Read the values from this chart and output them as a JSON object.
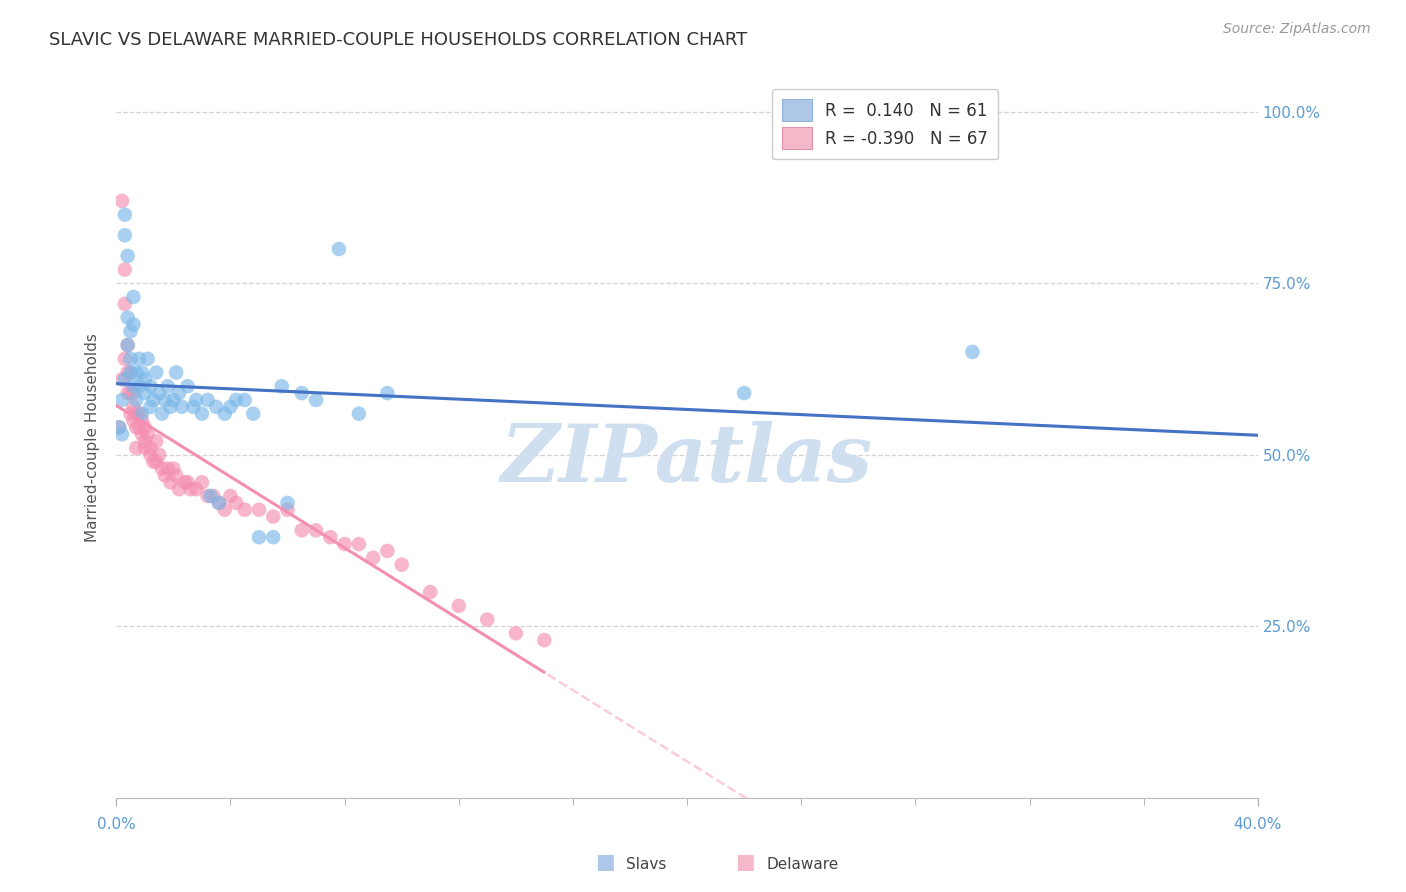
{
  "title": "SLAVIC VS DELAWARE MARRIED-COUPLE HOUSEHOLDS CORRELATION CHART",
  "source": "Source: ZipAtlas.com",
  "ylabel": "Married-couple Households",
  "legend_entries": [
    {
      "label": "Slavs",
      "R": 0.14,
      "N": 61
    },
    {
      "label": "Delaware",
      "R": -0.39,
      "N": 67
    }
  ],
  "watermark": "ZIPatlas",
  "slavs_x": [
    0.001,
    0.002,
    0.002,
    0.003,
    0.003,
    0.003,
    0.004,
    0.004,
    0.004,
    0.005,
    0.005,
    0.005,
    0.006,
    0.006,
    0.006,
    0.007,
    0.007,
    0.008,
    0.008,
    0.009,
    0.009,
    0.01,
    0.01,
    0.011,
    0.012,
    0.012,
    0.013,
    0.014,
    0.015,
    0.016,
    0.017,
    0.018,
    0.019,
    0.02,
    0.021,
    0.022,
    0.023,
    0.025,
    0.027,
    0.028,
    0.03,
    0.032,
    0.033,
    0.035,
    0.036,
    0.038,
    0.04,
    0.042,
    0.045,
    0.048,
    0.05,
    0.055,
    0.058,
    0.06,
    0.065,
    0.07,
    0.078,
    0.085,
    0.095,
    0.22,
    0.3
  ],
  "slavs_y": [
    0.54,
    0.53,
    0.58,
    0.85,
    0.82,
    0.61,
    0.79,
    0.7,
    0.66,
    0.68,
    0.64,
    0.62,
    0.73,
    0.69,
    0.6,
    0.62,
    0.58,
    0.64,
    0.6,
    0.62,
    0.56,
    0.59,
    0.61,
    0.64,
    0.6,
    0.57,
    0.58,
    0.62,
    0.59,
    0.56,
    0.58,
    0.6,
    0.57,
    0.58,
    0.62,
    0.59,
    0.57,
    0.6,
    0.57,
    0.58,
    0.56,
    0.58,
    0.44,
    0.57,
    0.43,
    0.56,
    0.57,
    0.58,
    0.58,
    0.56,
    0.38,
    0.38,
    0.6,
    0.43,
    0.59,
    0.58,
    0.8,
    0.56,
    0.59,
    0.59,
    0.65
  ],
  "delaware_x": [
    0.001,
    0.002,
    0.002,
    0.003,
    0.003,
    0.003,
    0.004,
    0.004,
    0.004,
    0.005,
    0.005,
    0.005,
    0.006,
    0.006,
    0.006,
    0.007,
    0.007,
    0.007,
    0.008,
    0.008,
    0.009,
    0.009,
    0.01,
    0.01,
    0.01,
    0.011,
    0.012,
    0.012,
    0.013,
    0.014,
    0.014,
    0.015,
    0.016,
    0.017,
    0.018,
    0.019,
    0.02,
    0.021,
    0.022,
    0.024,
    0.025,
    0.026,
    0.028,
    0.03,
    0.032,
    0.034,
    0.036,
    0.038,
    0.04,
    0.042,
    0.045,
    0.05,
    0.055,
    0.06,
    0.065,
    0.07,
    0.075,
    0.08,
    0.085,
    0.09,
    0.095,
    0.1,
    0.11,
    0.12,
    0.13,
    0.14,
    0.15
  ],
  "delaware_y": [
    0.54,
    0.87,
    0.61,
    0.77,
    0.72,
    0.64,
    0.66,
    0.62,
    0.59,
    0.62,
    0.59,
    0.56,
    0.59,
    0.57,
    0.55,
    0.56,
    0.54,
    0.51,
    0.56,
    0.54,
    0.53,
    0.55,
    0.54,
    0.52,
    0.51,
    0.53,
    0.5,
    0.51,
    0.49,
    0.52,
    0.49,
    0.5,
    0.48,
    0.47,
    0.48,
    0.46,
    0.48,
    0.47,
    0.45,
    0.46,
    0.46,
    0.45,
    0.45,
    0.46,
    0.44,
    0.44,
    0.43,
    0.42,
    0.44,
    0.43,
    0.42,
    0.42,
    0.41,
    0.42,
    0.39,
    0.39,
    0.38,
    0.37,
    0.37,
    0.35,
    0.36,
    0.34,
    0.3,
    0.28,
    0.26,
    0.24,
    0.23
  ],
  "slavs_dot_color": "#7bb8e8",
  "delaware_dot_color": "#f48fb1",
  "slavs_line_color": "#4472c4",
  "delaware_line_color": "#f48fb1",
  "slavs_legend_color": "#aec6e8",
  "delaware_legend_color": "#f4b8c8",
  "background_color": "#ffffff",
  "grid_color": "#c8c8c8",
  "title_color": "#333333",
  "axis_tick_color": "#5b9bd5",
  "watermark_color": "#d0dff0",
  "xmin": 0.0,
  "xmax": 0.4,
  "ymin": 0.0,
  "ymax": 1.05,
  "ytick_vals": [
    0.25,
    0.5,
    0.75,
    1.0
  ],
  "ytick_labels": [
    "25.0%",
    "50.0%",
    "75.0%",
    "100.0%"
  ]
}
